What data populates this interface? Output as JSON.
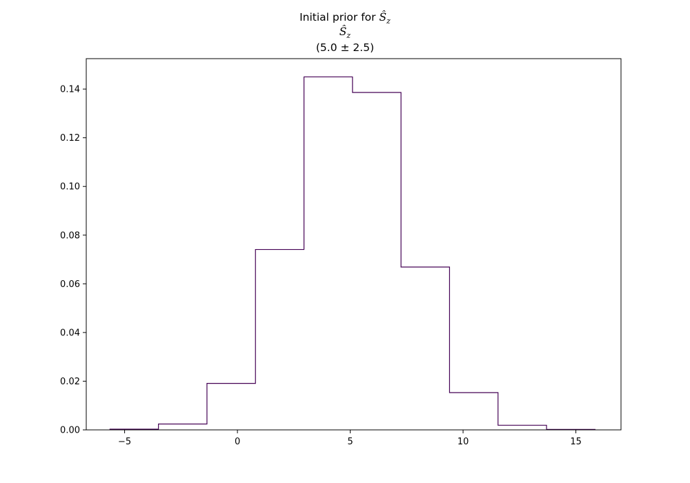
{
  "chart_data": {
    "type": "histogram",
    "title": {
      "line1_prefix": "Initial prior for",
      "symbol_base": "Ŝ",
      "symbol_sub": "z",
      "line3": "(5.0 ± 2.5)"
    },
    "xlabel": "",
    "ylabel": "",
    "xlim": [
      -6.7,
      17.0
    ],
    "ylim": [
      0.0,
      0.1525
    ],
    "xticks": [
      -5,
      0,
      5,
      10,
      15
    ],
    "yticks": [
      0.0,
      0.02,
      0.04,
      0.06,
      0.08,
      0.1,
      0.12,
      0.14
    ],
    "ytick_format_decimals": 2,
    "grid": false,
    "legend": "none",
    "histtype": "step",
    "bin_edges": [
      -5.65,
      -3.5,
      -1.35,
      0.8,
      2.95,
      5.1,
      7.25,
      9.4,
      11.55,
      13.7,
      15.85
    ],
    "values": [
      0.0003,
      0.0024,
      0.0191,
      0.0741,
      0.145,
      0.1386,
      0.0669,
      0.0153,
      0.0019,
      0.0002
    ],
    "color": "#440154"
  }
}
